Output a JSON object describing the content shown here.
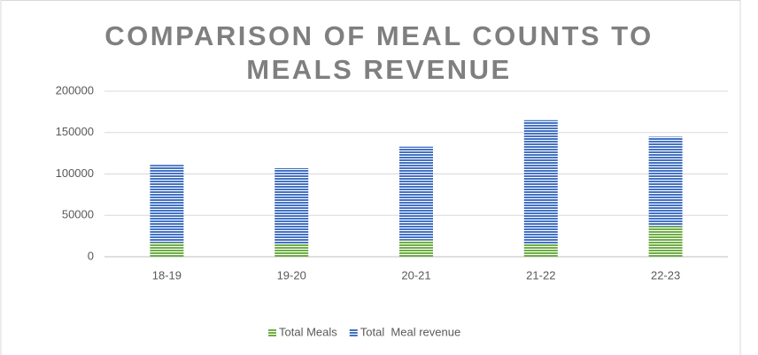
{
  "chart_data": {
    "type": "bar",
    "stacked": true,
    "title": "COMPARISON OF MEAL COUNTS TO MEALS REVENUE",
    "categories": [
      "18-19",
      "19-20",
      "20-21",
      "21-22",
      "22-23"
    ],
    "series": [
      {
        "name": "Total Meals",
        "color": "#70ad47",
        "values": [
          17000,
          16000,
          20000,
          16000,
          37000
        ]
      },
      {
        "name": "Total  Meal revenue",
        "color": "#4472c4",
        "values": [
          94000,
          91000,
          113000,
          149000,
          108000
        ]
      }
    ],
    "ylim": [
      0,
      200000
    ],
    "yticks": [
      0,
      50000,
      100000,
      150000,
      200000
    ],
    "grid": true,
    "legend": "bottom"
  }
}
